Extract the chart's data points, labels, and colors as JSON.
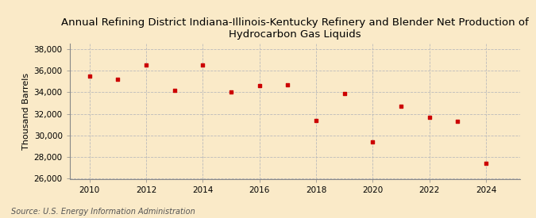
{
  "title": "Annual Refining District Indiana-Illinois-Kentucky Refinery and Blender Net Production of\nHydrocarbon Gas Liquids",
  "ylabel": "Thousand Barrels",
  "source": "Source: U.S. Energy Information Administration",
  "background_color": "#faeac8",
  "marker_color": "#cc0000",
  "grid_color": "#bbbbbb",
  "years": [
    2010,
    2011,
    2012,
    2013,
    2014,
    2015,
    2016,
    2017,
    2018,
    2019,
    2020,
    2021,
    2022,
    2023,
    2024
  ],
  "values": [
    35500,
    35200,
    36500,
    34200,
    36500,
    34000,
    34600,
    34700,
    31400,
    33900,
    29400,
    32700,
    31700,
    31300,
    27400
  ],
  "ylim": [
    26000,
    38500
  ],
  "yticks": [
    26000,
    28000,
    30000,
    32000,
    34000,
    36000,
    38000
  ],
  "xlim": [
    2009.3,
    2025.2
  ],
  "xticks": [
    2010,
    2012,
    2014,
    2016,
    2018,
    2020,
    2022,
    2024
  ],
  "title_fontsize": 9.5,
  "axis_fontsize": 8,
  "tick_fontsize": 7.5,
  "source_fontsize": 7
}
